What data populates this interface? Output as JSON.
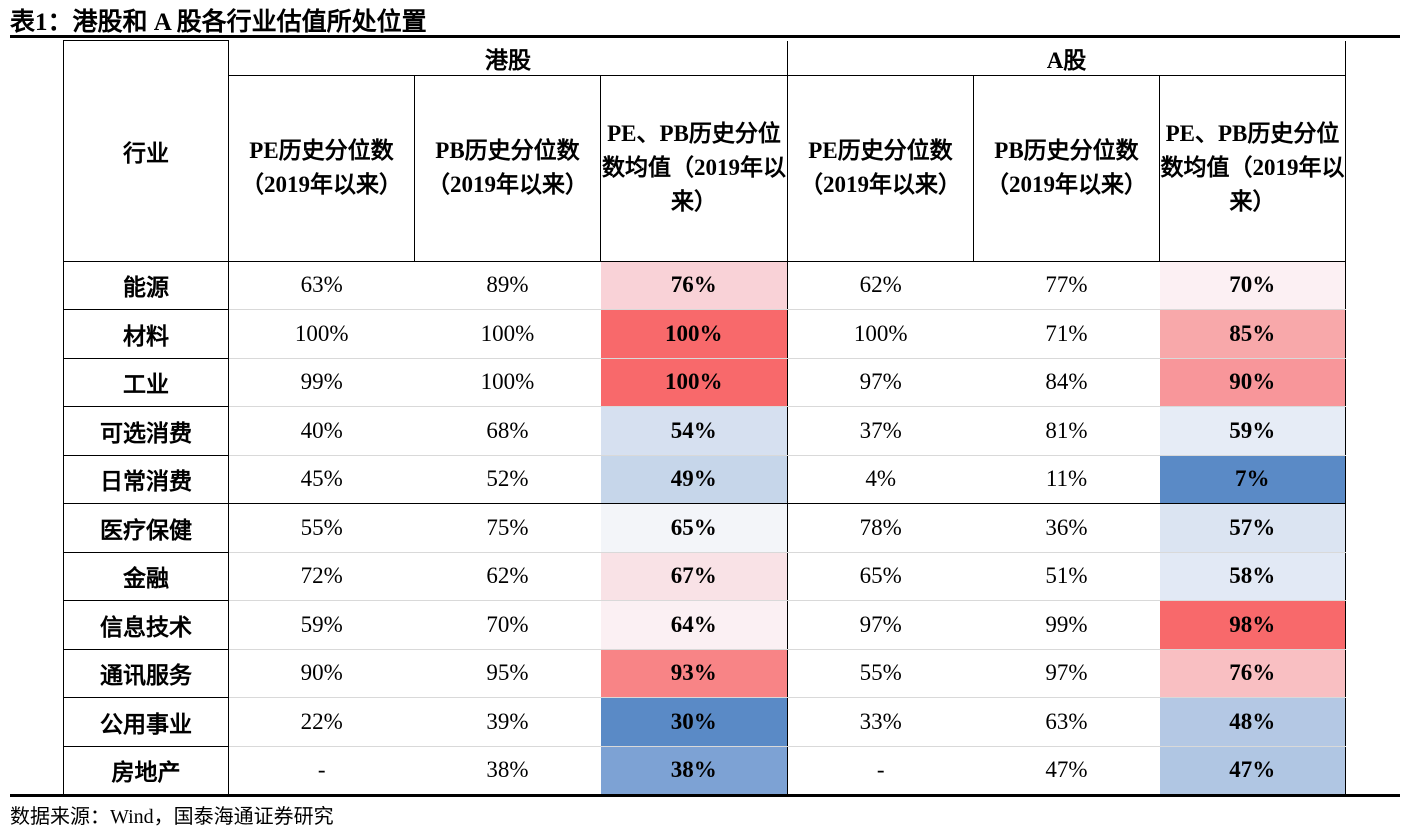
{
  "title": "表1：港股和 A 股各行业估值所处位置",
  "header": {
    "industry": "行业",
    "groups": [
      "港股",
      "A股"
    ],
    "columns": [
      "PE历史分位数（2019年以来）",
      "PB历史分位数（2019年以来）",
      "PE、PB历史分位数均值（2019年以来）",
      "PE历史分位数（2019年以来）",
      "PB历史分位数（2019年以来）",
      "PE、PB历史分位数均值（2019年以来）"
    ]
  },
  "rows": [
    {
      "industry": "能源",
      "hk_pe": "63%",
      "hk_pb": "89%",
      "hk_avg": "76%",
      "hk_color": "#f9d2d7",
      "a_pe": "62%",
      "a_pb": "77%",
      "a_avg": "70%",
      "a_color": "#fcf0f3"
    },
    {
      "industry": "材料",
      "hk_pe": "100%",
      "hk_pb": "100%",
      "hk_avg": "100%",
      "hk_color": "#f8696b",
      "a_pe": "100%",
      "a_pb": "71%",
      "a_avg": "85%",
      "a_color": "#f8a8aa"
    },
    {
      "industry": "工业",
      "hk_pe": "99%",
      "hk_pb": "100%",
      "hk_avg": "100%",
      "hk_color": "#f8696b",
      "a_pe": "97%",
      "a_pb": "84%",
      "a_avg": "90%",
      "a_color": "#f8969a"
    },
    {
      "industry": "可选消费",
      "hk_pe": "40%",
      "hk_pb": "68%",
      "hk_avg": "54%",
      "hk_color": "#d6e0f0",
      "a_pe": "37%",
      "a_pb": "81%",
      "a_avg": "59%",
      "a_color": "#e6ecf6"
    },
    {
      "industry": "日常消费",
      "hk_pe": "45%",
      "hk_pb": "52%",
      "hk_avg": "49%",
      "hk_color": "#c6d6ea",
      "a_pe": "4%",
      "a_pb": "11%",
      "a_avg": "7%",
      "a_color": "#5a8ac6"
    },
    {
      "industry": "医疗保健",
      "hk_pe": "55%",
      "hk_pb": "75%",
      "hk_avg": "65%",
      "hk_color": "#f3f5f9",
      "a_pe": "78%",
      "a_pb": "36%",
      "a_avg": "57%",
      "a_color": "#dbe4f2"
    },
    {
      "industry": "金融",
      "hk_pe": "72%",
      "hk_pb": "62%",
      "hk_avg": "67%",
      "hk_color": "#f9e2e6",
      "a_pe": "65%",
      "a_pb": "51%",
      "a_avg": "58%",
      "a_color": "#e2e9f5"
    },
    {
      "industry": "信息技术",
      "hk_pe": "59%",
      "hk_pb": "70%",
      "hk_avg": "64%",
      "hk_color": "#fbf0f3",
      "a_pe": "97%",
      "a_pb": "99%",
      "a_avg": "98%",
      "a_color": "#f8696b"
    },
    {
      "industry": "通讯服务",
      "hk_pe": "90%",
      "hk_pb": "95%",
      "hk_avg": "93%",
      "hk_color": "#f88486",
      "a_pe": "55%",
      "a_pb": "97%",
      "a_avg": "76%",
      "a_color": "#f9bfc2"
    },
    {
      "industry": "公用事业",
      "hk_pe": "22%",
      "hk_pb": "39%",
      "hk_avg": "30%",
      "hk_color": "#5a8ac6",
      "a_pe": "33%",
      "a_pb": "63%",
      "a_avg": "48%",
      "a_color": "#b4c8e4"
    },
    {
      "industry": "房地产",
      "hk_pe": "-",
      "hk_pb": "38%",
      "hk_avg": "38%",
      "hk_color": "#7da2d4",
      "a_pe": "-",
      "a_pb": "47%",
      "a_avg": "47%",
      "a_color": "#b0c6e3"
    }
  ],
  "source": "数据来源：Wind，国泰海通证券研究"
}
